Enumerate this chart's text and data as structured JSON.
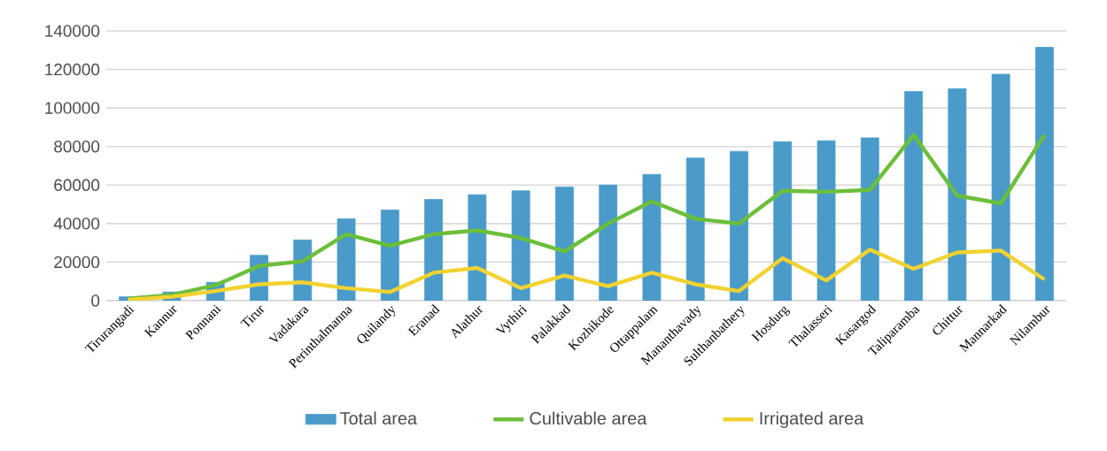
{
  "chart_data": {
    "type": "bar",
    "categories": [
      "Tirurangadi",
      "Kannur",
      "Ponnani",
      "Tirur",
      "Vadakara",
      "Perinthalmanna",
      "Quilandy",
      "Eranad",
      "Alathur",
      "Vythiri",
      "Palakkad",
      "Kozhikode",
      "Ottappalam",
      "Mananthavady",
      "Sulthanbathery",
      "Hosdurg",
      "Thalasseri",
      "Kasargod",
      "Taliparamba",
      "Chittur",
      "Mannarkad",
      "Nilambur"
    ],
    "series": [
      {
        "name": "Total area",
        "color": "#4a9bc9",
        "values": [
          2000,
          4500,
          9500,
          23500,
          31500,
          42500,
          47000,
          52500,
          55000,
          57000,
          59000,
          60000,
          65500,
          74000,
          77500,
          82500,
          83000,
          84500,
          108500,
          110000,
          117500,
          131500
        ]
      },
      {
        "name": "Cultivable area",
        "type": "line",
        "color": "#6bbf3a",
        "values": [
          1000,
          3000,
          8000,
          18000,
          20500,
          34500,
          28500,
          34500,
          36500,
          32500,
          25500,
          40000,
          51500,
          42500,
          40000,
          57000,
          56500,
          57500,
          86000,
          54500,
          50500,
          86000
        ]
      },
      {
        "name": "Irrigated area",
        "type": "line",
        "color": "#f2d230",
        "values": [
          500,
          2000,
          5000,
          8500,
          9500,
          6500,
          4500,
          14500,
          17000,
          6500,
          13000,
          7500,
          14500,
          8500,
          5000,
          22000,
          10500,
          26500,
          16500,
          25000,
          26000,
          11000
        ]
      }
    ],
    "ylim": [
      0,
      140000
    ],
    "yticks": [
      0,
      20000,
      40000,
      60000,
      80000,
      100000,
      120000,
      140000
    ],
    "grid": "y",
    "legend": "bottom",
    "marker": "none",
    "line_style": "solid"
  }
}
